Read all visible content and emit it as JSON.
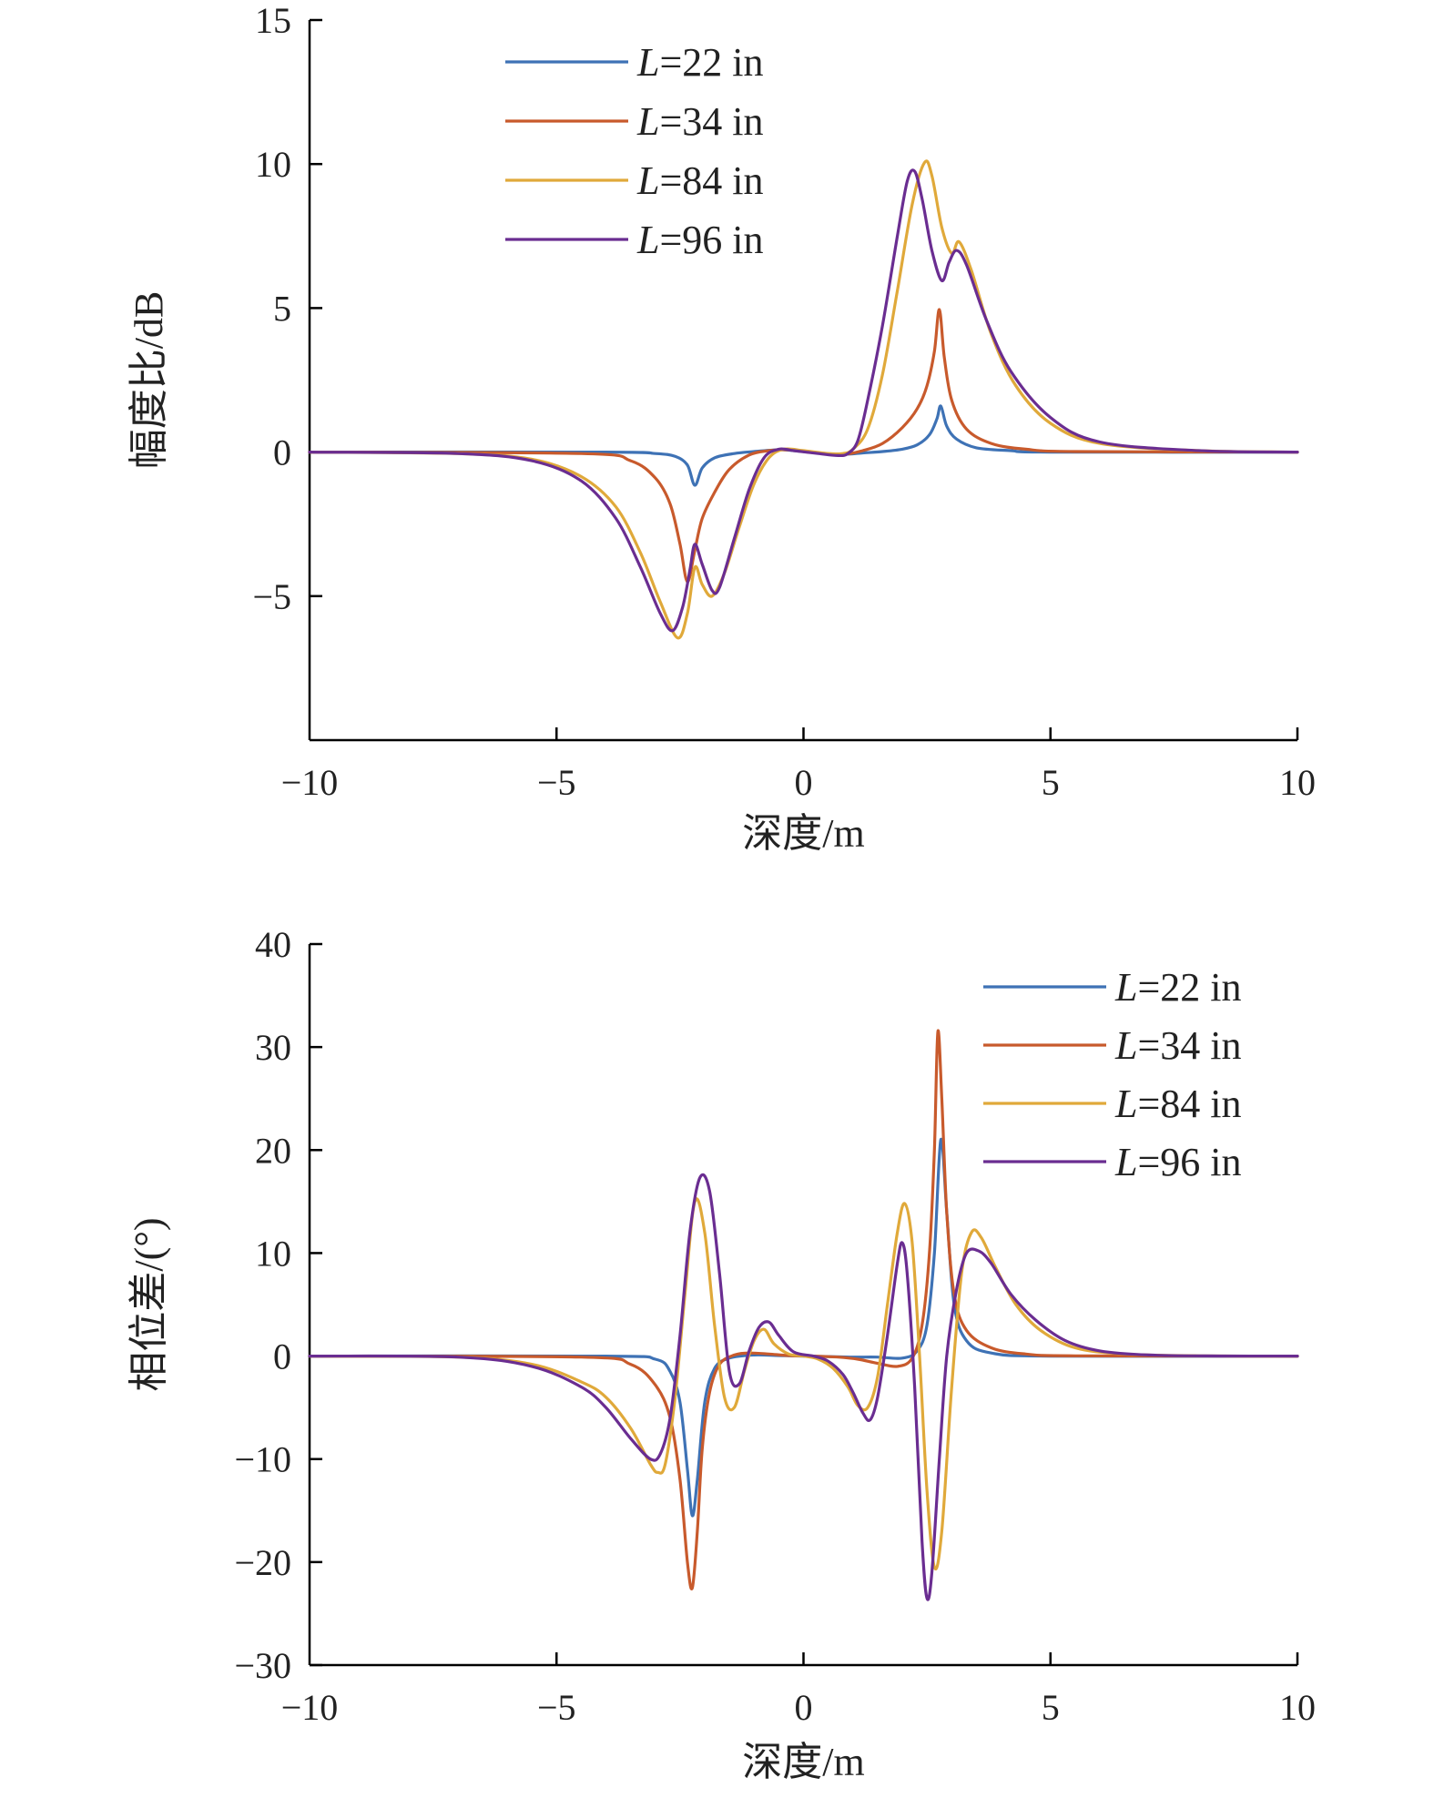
{
  "chart_data": [
    {
      "type": "line",
      "title": "",
      "xlabel": "深度/m",
      "ylabel": "幅度比/dB",
      "xlim": [
        -10,
        10
      ],
      "ylim": [
        -10,
        15
      ],
      "xticks": [
        -10,
        -5,
        0,
        5,
        10
      ],
      "yticks": [
        -5,
        0,
        5,
        10,
        15
      ],
      "xtick_labels": [
        "−10",
        "−5",
        "0",
        "5",
        "10"
      ],
      "ytick_labels": [
        "−5",
        "0",
        "5",
        "10",
        "15"
      ],
      "grid": false,
      "legend_position": "top-left",
      "series": [
        {
          "name": "L=22 in",
          "var": "L",
          "rest": "=22 in",
          "color": "#3e72b5",
          "x": [
            -10,
            -4,
            -3,
            -2.6,
            -2.35,
            -2.2,
            -2.05,
            -1.8,
            -1.4,
            -1,
            -0.5,
            -0.2,
            0.3,
            0.8,
            1.2,
            1.6,
            2,
            2.3,
            2.55,
            2.7,
            2.78,
            2.9,
            3.1,
            3.5,
            4.2,
            5,
            10
          ],
          "y": [
            0,
            0,
            -0.05,
            -0.15,
            -0.45,
            -1.15,
            -0.55,
            -0.2,
            -0.05,
            0.02,
            0.08,
            0.05,
            -0.03,
            -0.08,
            -0.03,
            0.02,
            0.1,
            0.25,
            0.6,
            1.15,
            1.6,
            0.9,
            0.45,
            0.15,
            0.05,
            0,
            0
          ]
        },
        {
          "name": "L=34 in",
          "var": "L",
          "rest": "=34 in",
          "color": "#c85a2c",
          "x": [
            -10,
            -4.5,
            -3.5,
            -3,
            -2.7,
            -2.5,
            -2.35,
            -2.2,
            -2.05,
            -1.8,
            -1.5,
            -1.1,
            -0.7,
            -0.3,
            0.2,
            0.8,
            1.2,
            1.6,
            2,
            2.3,
            2.5,
            2.65,
            2.75,
            2.85,
            3,
            3.3,
            3.8,
            4.5,
            5.5,
            10
          ],
          "y": [
            0,
            -0.05,
            -0.3,
            -0.9,
            -1.8,
            -3.2,
            -4.5,
            -3.4,
            -2.3,
            -1.4,
            -0.6,
            -0.1,
            0.05,
            0.08,
            -0.02,
            -0.08,
            0.05,
            0.3,
            0.85,
            1.5,
            2.3,
            3.5,
            4.95,
            3.3,
            1.8,
            0.8,
            0.3,
            0.1,
            0.02,
            0
          ]
        },
        {
          "name": "L=84 in",
          "var": "L",
          "rest": "=84 in",
          "color": "#e0a93a",
          "x": [
            -10,
            -7,
            -5.5,
            -4.5,
            -3.8,
            -3.3,
            -2.9,
            -2.55,
            -2.35,
            -2.2,
            -2.05,
            -1.85,
            -1.6,
            -1.3,
            -1,
            -0.7,
            -0.4,
            0,
            0.5,
            0.8,
            1,
            1.3,
            1.6,
            1.9,
            2.2,
            2.45,
            2.6,
            2.8,
            3,
            3.15,
            3.4,
            3.8,
            4.3,
            5,
            6,
            8,
            10
          ],
          "y": [
            0,
            -0.05,
            -0.25,
            -0.85,
            -1.9,
            -3.5,
            -5.2,
            -6.45,
            -5.6,
            -4.0,
            -4.6,
            -5.0,
            -4.2,
            -2.6,
            -1.1,
            -0.2,
            0.1,
            0.05,
            -0.05,
            -0.05,
            0.1,
            0.8,
            2.7,
            5.6,
            8.6,
            10.05,
            9.6,
            7.8,
            6.9,
            7.3,
            6.3,
            4.1,
            2.3,
            1.0,
            0.3,
            0.05,
            0
          ]
        },
        {
          "name": "L=96 in",
          "var": "L",
          "rest": "=96 in",
          "color": "#6a2d91",
          "x": [
            -10,
            -7,
            -5.5,
            -4.5,
            -3.8,
            -3.3,
            -2.9,
            -2.65,
            -2.45,
            -2.3,
            -2.2,
            -2.05,
            -1.85,
            -1.7,
            -1.4,
            -1.1,
            -0.8,
            -0.5,
            -0.2,
            0.3,
            0.7,
            0.9,
            1.1,
            1.3,
            1.6,
            1.9,
            2.1,
            2.25,
            2.4,
            2.6,
            2.8,
            2.95,
            3.1,
            3.3,
            3.7,
            4.2,
            5,
            6,
            8,
            10
          ],
          "y": [
            0,
            -0.05,
            -0.3,
            -1.0,
            -2.3,
            -4.0,
            -5.6,
            -6.2,
            -5.4,
            -4.1,
            -3.2,
            -3.9,
            -4.8,
            -4.7,
            -3.0,
            -1.3,
            -0.2,
            0.1,
            0.05,
            -0.05,
            -0.12,
            -0.05,
            0.4,
            1.8,
            4.4,
            7.5,
            9.4,
            9.75,
            8.8,
            7.0,
            5.95,
            6.6,
            7.0,
            6.5,
            4.6,
            2.8,
            1.2,
            0.35,
            0.05,
            0
          ]
        }
      ]
    },
    {
      "type": "line",
      "title": "",
      "xlabel": "深度/m",
      "ylabel": "相位差/(°)",
      "xlim": [
        -10,
        10
      ],
      "ylim": [
        -30,
        40
      ],
      "xticks": [
        -10,
        -5,
        0,
        5,
        10
      ],
      "yticks": [
        -30,
        -20,
        -10,
        0,
        10,
        20,
        30,
        40
      ],
      "xtick_labels": [
        "−10",
        "−5",
        "0",
        "5",
        "10"
      ],
      "ytick_labels": [
        "−30",
        "−20",
        "−10",
        "0",
        "10",
        "20",
        "30",
        "40"
      ],
      "grid": false,
      "legend_position": "top-right",
      "series": [
        {
          "name": "L=22 in",
          "var": "L",
          "rest": "=22 in",
          "color": "#3e72b5",
          "x": [
            -10,
            -4,
            -3,
            -2.7,
            -2.5,
            -2.35,
            -2.25,
            -2.15,
            -2.0,
            -1.8,
            -1.5,
            -1,
            -0.5,
            0,
            0.5,
            1,
            1.5,
            2,
            2.3,
            2.5,
            2.65,
            2.78,
            2.9,
            3.05,
            3.3,
            3.8,
            5,
            10
          ],
          "y": [
            0,
            0,
            -0.3,
            -1.5,
            -4.5,
            -11,
            -15.5,
            -12,
            -4.5,
            -1.2,
            -0.2,
            0.1,
            0.05,
            0,
            -0.05,
            -0.1,
            -0.1,
            -0.2,
            0.5,
            3,
            10,
            21,
            14,
            5,
            1.5,
            0.3,
            0,
            0
          ]
        },
        {
          "name": "L=34 in",
          "var": "L",
          "rest": "=34 in",
          "color": "#c85a2c",
          "x": [
            -10,
            -4.5,
            -3.5,
            -3,
            -2.7,
            -2.5,
            -2.35,
            -2.25,
            -2.15,
            -2.05,
            -1.9,
            -1.7,
            -1.4,
            -1.1,
            -0.7,
            -0.3,
            0.2,
            0.7,
            1.1,
            1.5,
            1.9,
            2.2,
            2.4,
            2.55,
            2.65,
            2.72,
            2.8,
            2.9,
            3.05,
            3.3,
            3.8,
            4.5,
            5.5,
            10
          ],
          "y": [
            0,
            -0.1,
            -0.8,
            -2.8,
            -6,
            -12,
            -20,
            -22.5,
            -17,
            -9,
            -3.5,
            -0.8,
            0.1,
            0.3,
            0.2,
            0.05,
            0,
            -0.1,
            -0.3,
            -0.7,
            -1,
            -0.2,
            3,
            10,
            20,
            31.5,
            25,
            14,
            6,
            2.5,
            0.8,
            0.2,
            0.02,
            0
          ]
        },
        {
          "name": "L=84 in",
          "var": "L",
          "rest": "=84 in",
          "color": "#e0a93a",
          "x": [
            -10,
            -7,
            -5.5,
            -4.5,
            -4,
            -3.5,
            -3.1,
            -2.95,
            -2.8,
            -2.6,
            -2.4,
            -2.2,
            -2.0,
            -1.8,
            -1.6,
            -1.4,
            -1.2,
            -1.0,
            -0.8,
            -0.6,
            -0.3,
            0,
            0.3,
            0.6,
            0.9,
            1.1,
            1.3,
            1.5,
            1.7,
            1.9,
            2.05,
            2.2,
            2.35,
            2.5,
            2.65,
            2.8,
            3.0,
            3.2,
            3.4,
            3.6,
            3.9,
            4.3,
            4.8,
            5.5,
            6.5,
            8,
            10
          ],
          "y": [
            0,
            -0.1,
            -0.8,
            -2.5,
            -4,
            -7,
            -10.5,
            -11.3,
            -10.5,
            -4,
            6,
            15,
            12,
            3,
            -4,
            -5,
            -1.5,
            1.5,
            2.6,
            1.2,
            0.2,
            0,
            -0.3,
            -1.2,
            -3,
            -4.8,
            -5,
            -2,
            5,
            12,
            14.8,
            11,
            0,
            -13,
            -20.5,
            -17,
            -3,
            8,
            12,
            11.5,
            8.5,
            5,
            2.5,
            0.8,
            0.2,
            0.02,
            0
          ]
        },
        {
          "name": "L=96 in",
          "var": "L",
          "rest": "=96 in",
          "color": "#6a2d91",
          "x": [
            -10,
            -7,
            -5.5,
            -4.5,
            -4,
            -3.5,
            -3.1,
            -2.9,
            -2.7,
            -2.5,
            -2.3,
            -2.1,
            -1.9,
            -1.7,
            -1.5,
            -1.3,
            -1.1,
            -0.9,
            -0.7,
            -0.5,
            -0.2,
            0.2,
            0.5,
            0.8,
            1.0,
            1.2,
            1.35,
            1.5,
            1.7,
            1.9,
            2.0,
            2.1,
            2.25,
            2.4,
            2.5,
            2.6,
            2.75,
            2.9,
            3.1,
            3.3,
            3.55,
            3.8,
            4.2,
            4.7,
            5.3,
            6,
            7,
            8.5,
            10
          ],
          "y": [
            0,
            -0.1,
            -1,
            -3,
            -5,
            -8,
            -10,
            -9.5,
            -6,
            2,
            12,
            17.3,
            16,
            8,
            -1.5,
            -2.7,
            0.5,
            2.8,
            3.3,
            2,
            0.4,
            0,
            -0.5,
            -1.8,
            -3.5,
            -5.5,
            -6.2,
            -4,
            2,
            9,
            11,
            8,
            -3,
            -18,
            -23.5,
            -21,
            -10,
            0,
            6.5,
            10,
            10.2,
            9,
            6,
            3.5,
            1.5,
            0.5,
            0.1,
            0.01,
            0
          ]
        }
      ]
    }
  ]
}
